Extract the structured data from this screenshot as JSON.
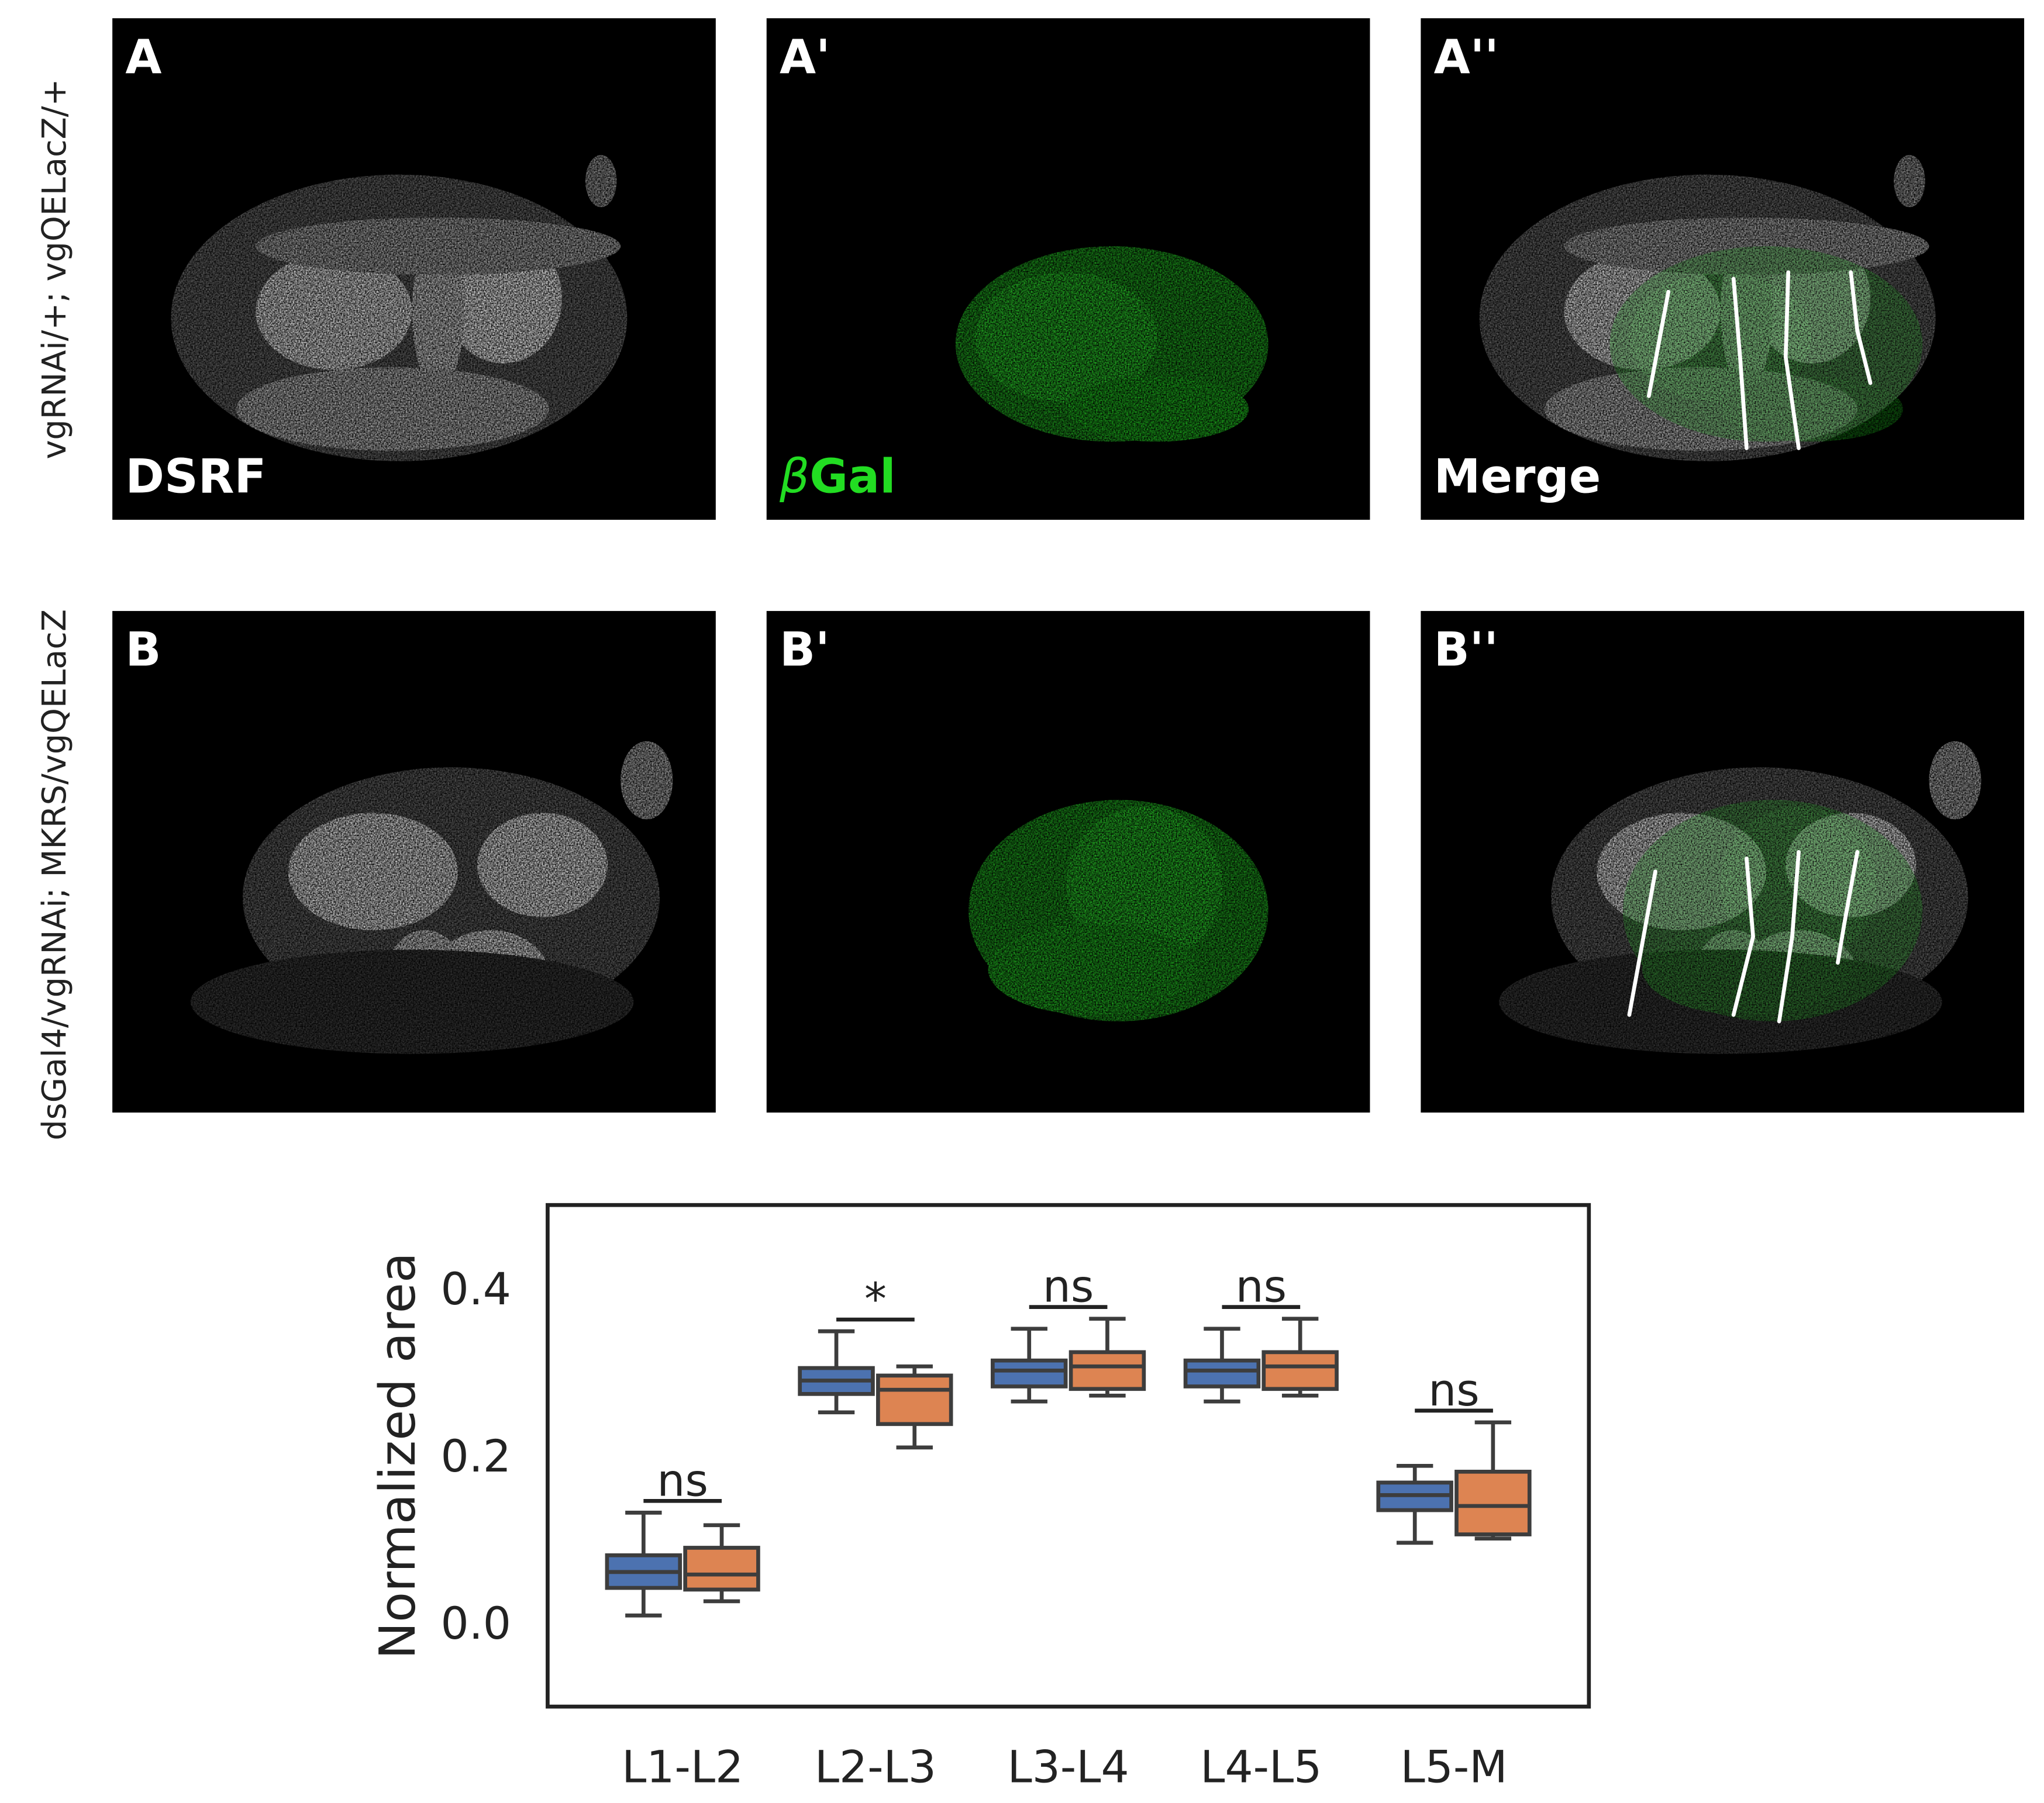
{
  "row_labels": [
    "vgRNAi/+; vgQELacZ/+",
    "dsGal4/vgRNAi; MKRS/vgQELacZ"
  ],
  "panels": [
    [
      {
        "label": "A",
        "caption": {
          "text": "DSRF"
        }
      },
      {
        "label": "A'",
        "caption": {
          "symbol": "β",
          "text": "Gal"
        }
      },
      {
        "label": "A''",
        "caption": {
          "text": "Merge"
        }
      }
    ],
    [
      {
        "label": "B"
      },
      {
        "label": "B'"
      },
      {
        "label": "B''"
      }
    ]
  ],
  "chart_data": {
    "type": "box",
    "ylabel": "Normalized area",
    "categories": [
      "L1-L2",
      "L2-L3",
      "L3-L4",
      "L4-L5",
      "L5-M"
    ],
    "ylim": [
      -0.1,
      0.5
    ],
    "yticks": [
      {
        "value": 0,
        "label": "0.0"
      },
      0.2,
      0.4
    ],
    "series": [
      {
        "color": "#4c72b0",
        "values": [
          {
            "min": 0.009,
            "q1": 0.042,
            "median": 0.061,
            "q3": 0.081,
            "max": 0.132
          },
          {
            "min": 0.252,
            "q1": 0.274,
            "median": 0.29,
            "q3": 0.305,
            "max": 0.349
          },
          {
            "min": 0.265,
            "q1": 0.283,
            "median": 0.302,
            "q3": 0.314,
            "max": 0.352
          },
          {
            "min": 0.265,
            "q1": 0.283,
            "median": 0.302,
            "q3": 0.314,
            "max": 0.352
          },
          {
            "min": 0.096,
            "q1": 0.135,
            "median": 0.153,
            "q3": 0.168,
            "max": 0.188
          }
        ]
      },
      {
        "color": "#dd8452",
        "values": [
          {
            "min": 0.026,
            "q1": 0.04,
            "median": 0.058,
            "q3": 0.09,
            "max": 0.117
          },
          {
            "min": 0.21,
            "q1": 0.238,
            "median": 0.279,
            "q3": 0.296,
            "max": 0.307
          },
          {
            "min": 0.272,
            "q1": 0.28,
            "median": 0.307,
            "q3": 0.324,
            "max": 0.364
          },
          {
            "min": 0.272,
            "q1": 0.28,
            "median": 0.307,
            "q3": 0.324,
            "max": 0.364
          },
          {
            "min": 0.101,
            "q1": 0.106,
            "median": 0.14,
            "q3": 0.181,
            "max": 0.24
          }
        ]
      }
    ],
    "significance": [
      "ns",
      "*",
      "ns",
      "ns",
      "ns"
    ]
  }
}
